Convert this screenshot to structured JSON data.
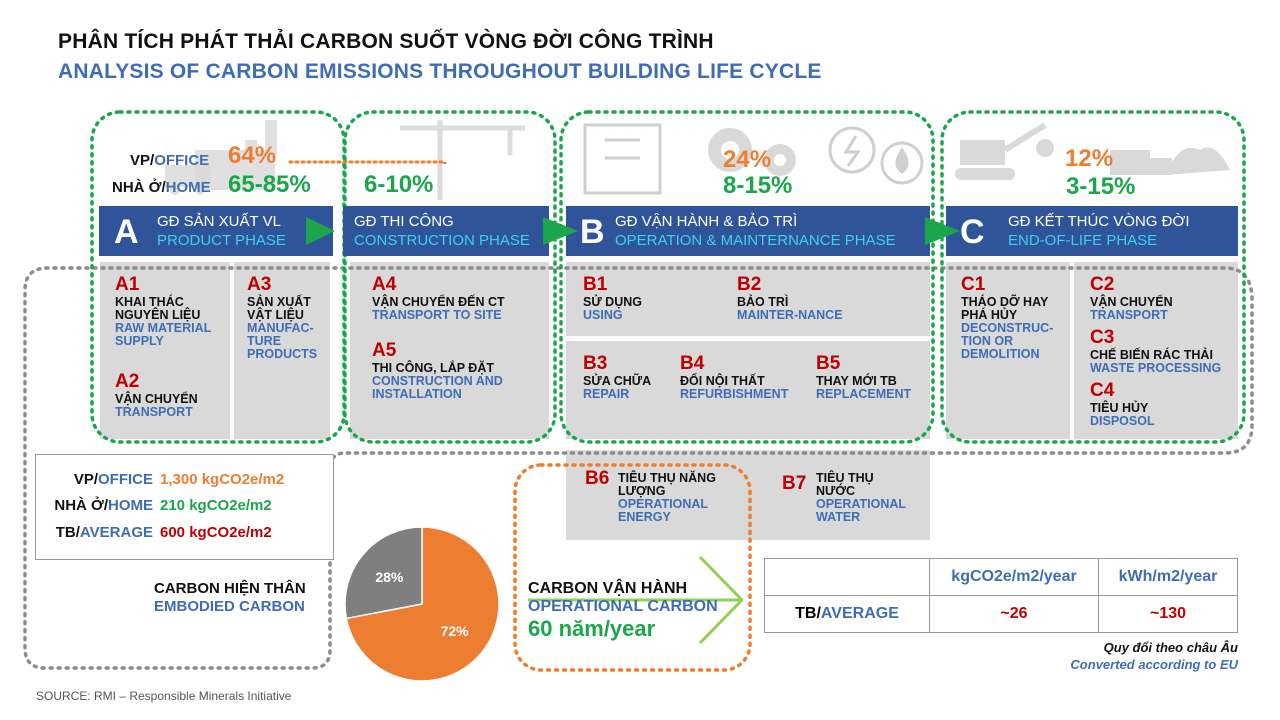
{
  "title": {
    "vn": "PHÂN TÍCH PHÁT THẢI CARBON SUỐT VÒNG ĐỜI CÔNG TRÌNH",
    "en": "ANALYSIS OF CARBON EMISSIONS THROUGHOUT BUILDING LIFE CYCLE"
  },
  "labels": {
    "office_prefix": "VP/",
    "office": "OFFICE",
    "home_prefix": "NHÀ Ở/",
    "home": "HOME",
    "average_prefix": "TB/",
    "average": "AVERAGE"
  },
  "shares": {
    "product_office": "64%",
    "product_home": "65-85%",
    "construction_home": "6-10%",
    "operation_office": "24%",
    "operation_home": "8-15%",
    "eol_office": "12%",
    "eol_home": "3-15%"
  },
  "phases": [
    {
      "letter": "A",
      "vn": "GĐ SẢN XUẤT VL",
      "en": "PRODUCT PHASE"
    },
    {
      "letter": "",
      "vn": "GĐ THI CÔNG",
      "en": "CONSTRUCTION  PHASE"
    },
    {
      "letter": "B",
      "vn": "GĐ VẬN HÀNH & BẢO TRÌ",
      "en": "OPERATION  & MAINTERNANCE  PHASE"
    },
    {
      "letter": "C",
      "vn": "GĐ KẾT THÚC VÒNG ĐỜI",
      "en": "END-OF-LIFE  PHASE"
    }
  ],
  "stages": {
    "A1": {
      "code": "A1",
      "vn": "KHAI THÁC NGUYÊN LIỆU",
      "en": "RAW MATERIAL SUPPLY"
    },
    "A2": {
      "code": "A2",
      "vn": "VẬN CHUYỂN",
      "en": "TRANSPORT"
    },
    "A3": {
      "code": "A3",
      "vn": "SẢN XUẤT VẬT LIỆU",
      "en": "MANUFAC-TURE PRODUCTS"
    },
    "A4": {
      "code": "A4",
      "vn": "VẬN CHUYỂN ĐẾN CT",
      "en": "TRANSPORT TO SITE"
    },
    "A5": {
      "code": "A5",
      "vn": "THI CÔNG, LẮP ĐẶT",
      "en": "CONSTRUCTION AND INSTALLATION"
    },
    "B1": {
      "code": "B1",
      "vn": "SỬ DỤNG",
      "en": "USING"
    },
    "B2": {
      "code": "B2",
      "vn": "BẢO TRÌ",
      "en": "MAINTER-NANCE"
    },
    "B3": {
      "code": "B3",
      "vn": "SỬA CHỮA",
      "en": "REPAIR"
    },
    "B4": {
      "code": "B4",
      "vn": "ĐỔI NỘI THẤT",
      "en": "REFURBISHMENT"
    },
    "B5": {
      "code": "B5",
      "vn": "THAY MỚI TB",
      "en": "REPLACEMENT"
    },
    "B6": {
      "code": "B6",
      "vn": "TIÊU THỤ NĂNG LƯỢNG",
      "en": "OPERATIONAL ENERGY"
    },
    "B7": {
      "code": "B7",
      "vn": "TIÊU THỤ NƯỚC",
      "en": "OPERATIONAL WATER"
    },
    "C1": {
      "code": "C1",
      "vn": "THÁO DỠ HAY PHÁ HỦY",
      "en": "DECONSTRUC-TION OR DEMOLITION"
    },
    "C2": {
      "code": "C2",
      "vn": "VẬN CHUYỂN",
      "en": "TRANSPORT"
    },
    "C3": {
      "code": "C3",
      "vn": "CHẾ BIẾN RÁC THẢI",
      "en": "WASTE PROCESSING"
    },
    "C4": {
      "code": "C4",
      "vn": "TIÊU HỦY",
      "en": "DISPOSOL"
    }
  },
  "embodied_totals": [
    {
      "prefix": "VP/",
      "label": "OFFICE",
      "value": "1,300 kgCO2e/m2",
      "color": "#ed7d31"
    },
    {
      "prefix": "NHÀ Ở/",
      "label": "HOME",
      "value": "210 kgCO2e/m2",
      "color": "#1aa64a"
    },
    {
      "prefix": "TB/",
      "label": "AVERAGE",
      "value": "600 kgCO2e/m2",
      "color": "#c00000"
    }
  ],
  "embodied": {
    "vn": "CARBON HIỆN THÂN",
    "en": "EMBODIED CARBON"
  },
  "chart_data": {
    "type": "pie",
    "values": [
      72,
      28
    ],
    "labels": [
      "72%",
      "28%"
    ],
    "colors": [
      "#ed7d31",
      "#7f7f7f"
    ]
  },
  "operational": {
    "vn": "CARBON VẬN HÀNH",
    "en": "OPERATIONAL CARBON",
    "years": "60 năm/year"
  },
  "op_table": {
    "headers": [
      "kgCO2e/m2/year",
      "kWh/m2/year"
    ],
    "row_prefix": "TB/",
    "row_label": "AVERAGE",
    "values": [
      "~26",
      "~130"
    ]
  },
  "note": {
    "vn": "Quy đổi theo châu Âu",
    "en": "Converted according  to EU"
  },
  "source": "SOURCE: RMI – Responsible Minerals Initiative",
  "colors": {
    "navy": "#2f549a",
    "green": "#1aa64a",
    "orange": "#ed7d31",
    "red": "#c00000",
    "blue": "#3f6db5"
  }
}
